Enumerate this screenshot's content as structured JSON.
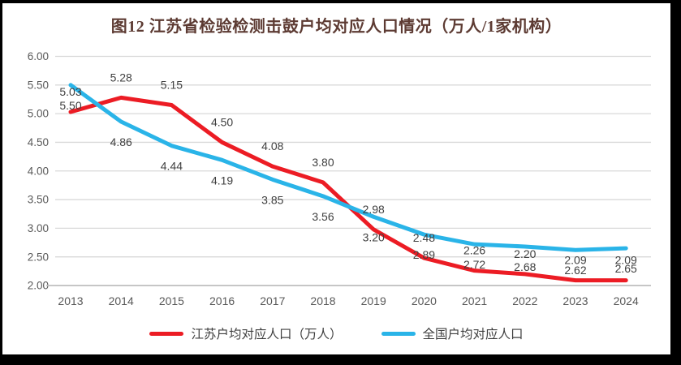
{
  "title": "图12  江苏省检验检测击鼓户均对应人口情况（万人/1家机构）",
  "chart_data": {
    "type": "line",
    "title": "图12  江苏省检验检测击鼓户均对应人口情况（万人/1家机构）",
    "categories": [
      "2013",
      "2014",
      "2015",
      "2016",
      "2017",
      "2018",
      "2019",
      "2020",
      "2021",
      "2022",
      "2023",
      "2024"
    ],
    "series": [
      {
        "name": "江苏户均对应人口（万人）",
        "color": "#EC1C24",
        "label_position": "above",
        "values": [
          5.03,
          5.28,
          5.15,
          4.5,
          4.08,
          3.8,
          2.98,
          2.48,
          2.26,
          2.2,
          2.09,
          2.09
        ]
      },
      {
        "name": "全国户均对应人口",
        "color": "#2AB4E8",
        "label_position": "below",
        "values": [
          5.5,
          4.86,
          4.44,
          4.19,
          3.85,
          3.56,
          3.2,
          2.89,
          2.72,
          2.68,
          2.62,
          2.65
        ]
      }
    ],
    "ylim": [
      2.0,
      6.0
    ],
    "ytick_step": 0.5,
    "ytick_labels": [
      "6.00",
      "5.50",
      "5.00",
      "4.50",
      "4.00",
      "3.50",
      "3.00",
      "2.50",
      "2.00"
    ],
    "grid": true,
    "data_labels": true,
    "legend_position": "bottom",
    "colors": {
      "gridline": "#D9D9D9",
      "axis_line": "#BFBFBF",
      "axis_text": "#595959",
      "data_label_text": "#404040",
      "title_text": "#5d3b33",
      "legend_text": "#3f3f3f"
    }
  }
}
